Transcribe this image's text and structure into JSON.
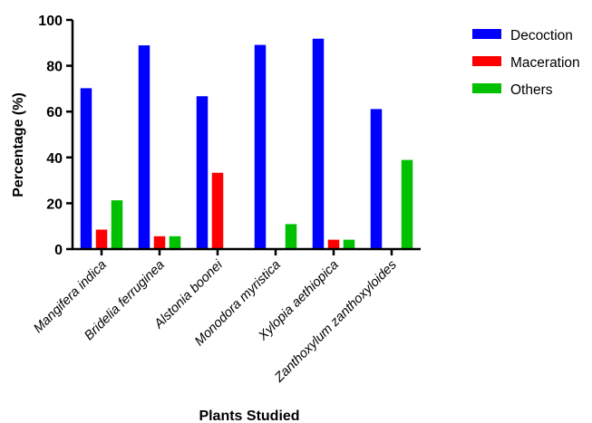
{
  "chart_data": {
    "type": "bar",
    "categories": [
      "Mangifera indica",
      "Bridelia ferruginea",
      "Alstonia boonei",
      "Monodora myristica",
      "Xylopia aethiopica",
      "Zanthoxylum zanthoxyloides"
    ],
    "series": [
      {
        "name": "Decoction",
        "color": "#0000ff",
        "values": [
          70.2,
          88.9,
          66.7,
          89.1,
          91.8,
          61.1
        ]
      },
      {
        "name": "Maceration",
        "color": "#ff0000",
        "values": [
          8.5,
          5.6,
          33.3,
          0,
          4.1,
          0
        ]
      },
      {
        "name": "Others",
        "color": "#00c000",
        "values": [
          21.3,
          5.6,
          0,
          10.9,
          4.1,
          38.9
        ]
      }
    ],
    "xlabel": "Plants Studied",
    "ylabel": "Percentage (%)",
    "ylim": [
      0,
      100
    ],
    "yticks": [
      0,
      20,
      40,
      60,
      80,
      100
    ],
    "grid": false,
    "legend": "top-right"
  }
}
